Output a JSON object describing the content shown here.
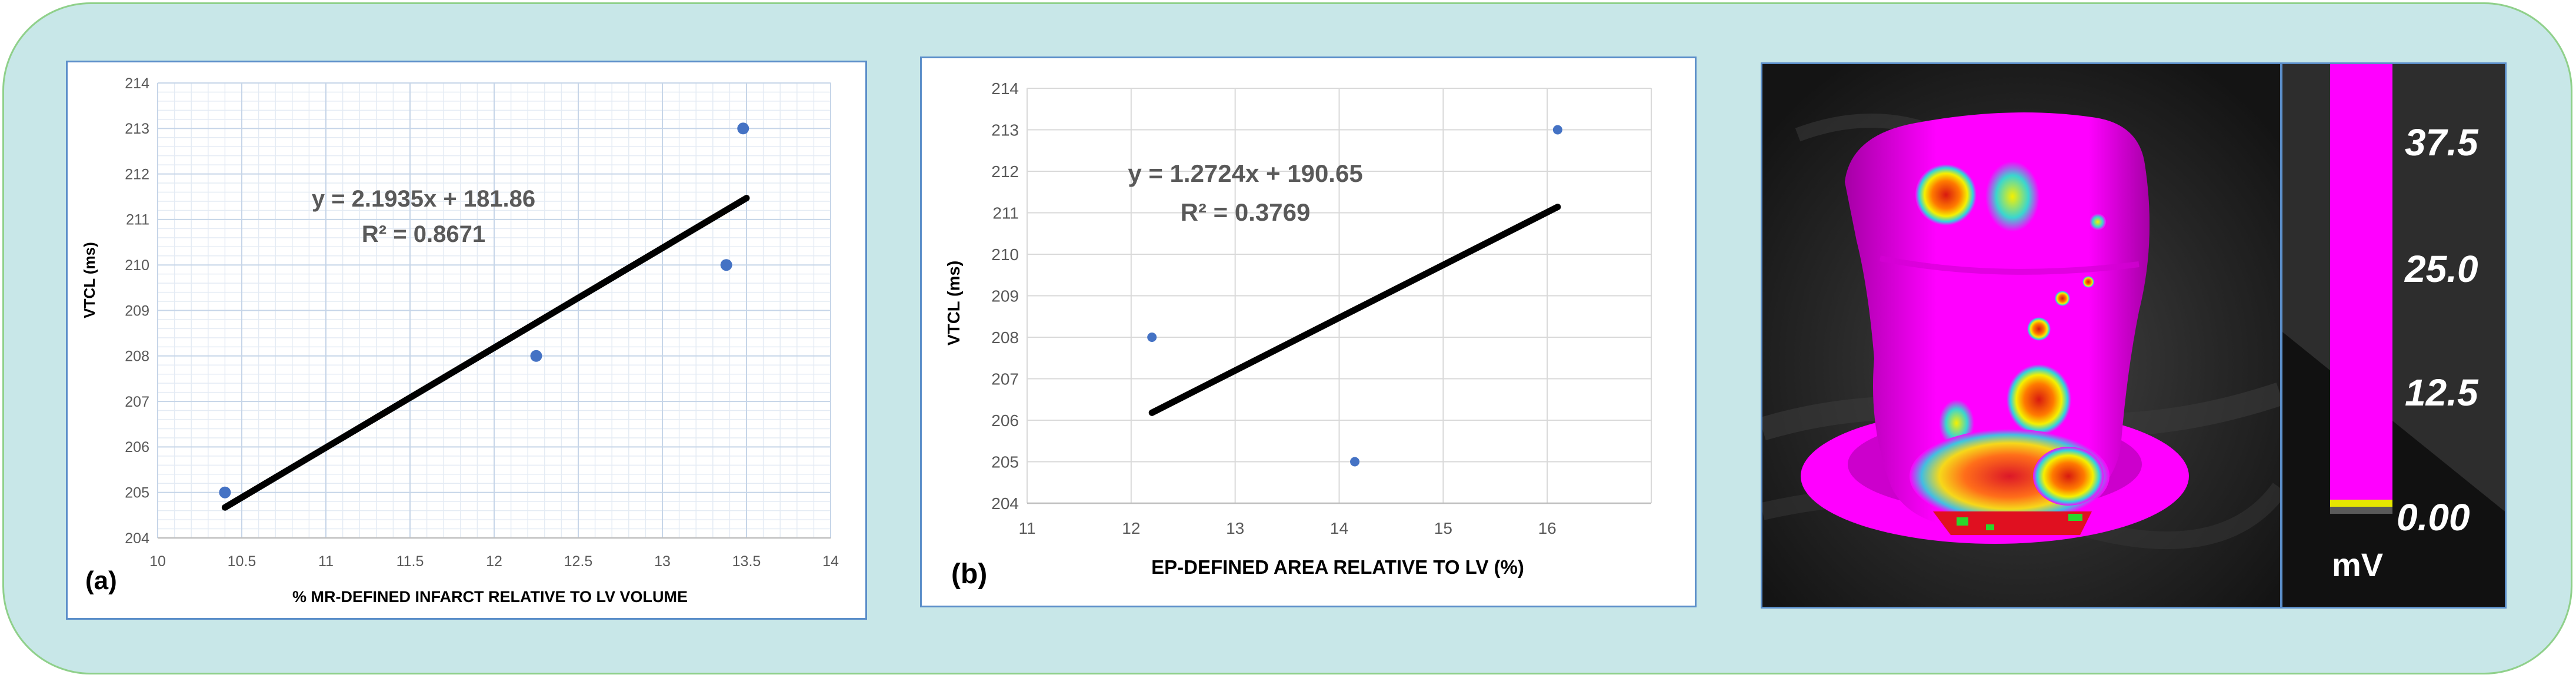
{
  "chart_data": [
    {
      "type": "scatter",
      "panel_label": "(a)",
      "xlabel": "% MR-DEFINED INFARCT RELATIVE TO LV VOLUME",
      "ylabel": "VTCL (ms)",
      "xlim": [
        10,
        14
      ],
      "ylim": [
        204,
        214
      ],
      "xticks": [
        "10",
        "10.5",
        "11",
        "11.5",
        "12",
        "12.5",
        "13",
        "13.5",
        "14"
      ],
      "yticks": [
        "204",
        "205",
        "206",
        "207",
        "208",
        "209",
        "210",
        "211",
        "212",
        "213",
        "214"
      ],
      "points": [
        {
          "x": 10.4,
          "y": 205
        },
        {
          "x": 12.25,
          "y": 208
        },
        {
          "x": 13.38,
          "y": 210
        },
        {
          "x": 13.48,
          "y": 213
        }
      ],
      "trendline": {
        "x": [
          10.4,
          13.5
        ],
        "y": [
          204.67,
          211.47
        ]
      },
      "equation": "y = 2.1935x + 181.86",
      "r_squared": "R² = 0.8671",
      "grid": "major and minor",
      "colors": {
        "point": "#4472c4",
        "trend": "#000000",
        "grid_major": "#c6d5e8",
        "grid_minor": "#e4ebf4"
      }
    },
    {
      "type": "scatter",
      "panel_label": "(b)",
      "xlabel": "EP-DEFINED AREA RELATIVE TO LV (%)",
      "ylabel": "VTCL (ms)",
      "xlim": [
        11,
        17
      ],
      "ylim": [
        204,
        214
      ],
      "xticks": [
        "11",
        "12",
        "13",
        "14",
        "15",
        "16"
      ],
      "yticks": [
        "204",
        "205",
        "206",
        "207",
        "208",
        "209",
        "210",
        "211",
        "212",
        "213",
        "214"
      ],
      "points": [
        {
          "x": 12.2,
          "y": 208
        },
        {
          "x": 14.15,
          "y": 205
        },
        {
          "x": 16.1,
          "y": 213
        }
      ],
      "trendline": {
        "x": [
          12.2,
          16.1
        ],
        "y": [
          206.18,
          211.14
        ]
      },
      "equation": "y = 1.2724x + 190.65",
      "r_squared": "R² = 0.3769",
      "grid": "major",
      "colors": {
        "point": "#4472c4",
        "trend": "#000000",
        "grid_major": "#d9d9d9"
      }
    }
  ],
  "colorbar": {
    "labels": [
      "37.5",
      "25.0",
      "12.5",
      "0.00"
    ],
    "unit": "mV",
    "colors": {
      "fill": "#ff00ff",
      "low": "#e6e600",
      "background": "#2d2d2d"
    }
  }
}
